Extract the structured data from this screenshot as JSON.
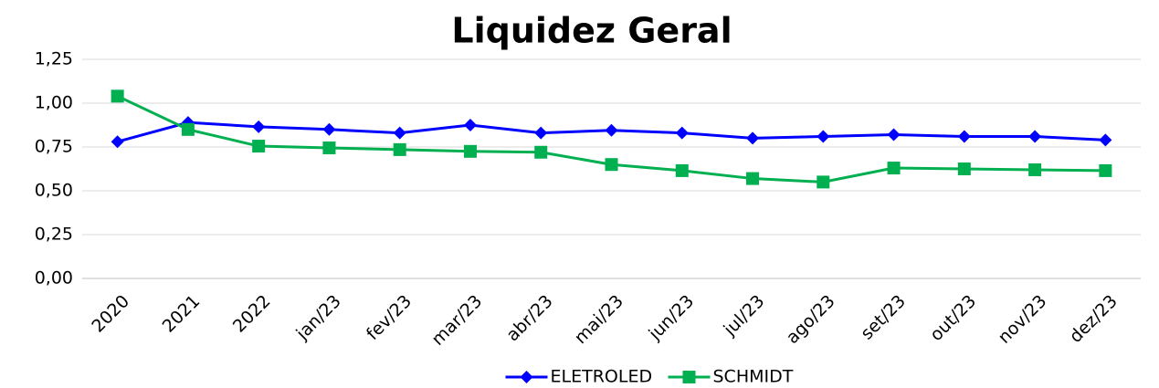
{
  "chart_data": {
    "type": "line",
    "title": "Liquidez Geral",
    "categories": [
      "2020",
      "2021",
      "2022",
      "jan/23",
      "fev/23",
      "mar/23",
      "abr/23",
      "mai/23",
      "jun/23",
      "jul/23",
      "ago/23",
      "set/23",
      "out/23",
      "nov/23",
      "dez/23"
    ],
    "series": [
      {
        "name": "ELETROLED",
        "color": "#0000ff",
        "marker": "diamond",
        "values": [
          0.78,
          0.89,
          0.865,
          0.85,
          0.83,
          0.875,
          0.83,
          0.845,
          0.83,
          0.8,
          0.81,
          0.82,
          0.81,
          0.81,
          0.79
        ]
      },
      {
        "name": "SCHMIDT",
        "color": "#00b050",
        "marker": "square",
        "values": [
          1.04,
          0.85,
          0.755,
          0.745,
          0.735,
          0.725,
          0.72,
          0.65,
          0.615,
          0.57,
          0.55,
          0.63,
          0.625,
          0.62,
          0.615
        ]
      }
    ],
    "ylim": [
      0,
      1.25
    ],
    "yticks": [
      {
        "value": 0,
        "label": "0,00"
      },
      {
        "value": 0.25,
        "label": "0,25"
      },
      {
        "value": 0.5,
        "label": "0,50"
      },
      {
        "value": 0.75,
        "label": "0,75"
      },
      {
        "value": 1,
        "label": "1,00"
      },
      {
        "value": 1.25,
        "label": "1,25"
      }
    ],
    "grid": true,
    "legend": "bottom"
  }
}
